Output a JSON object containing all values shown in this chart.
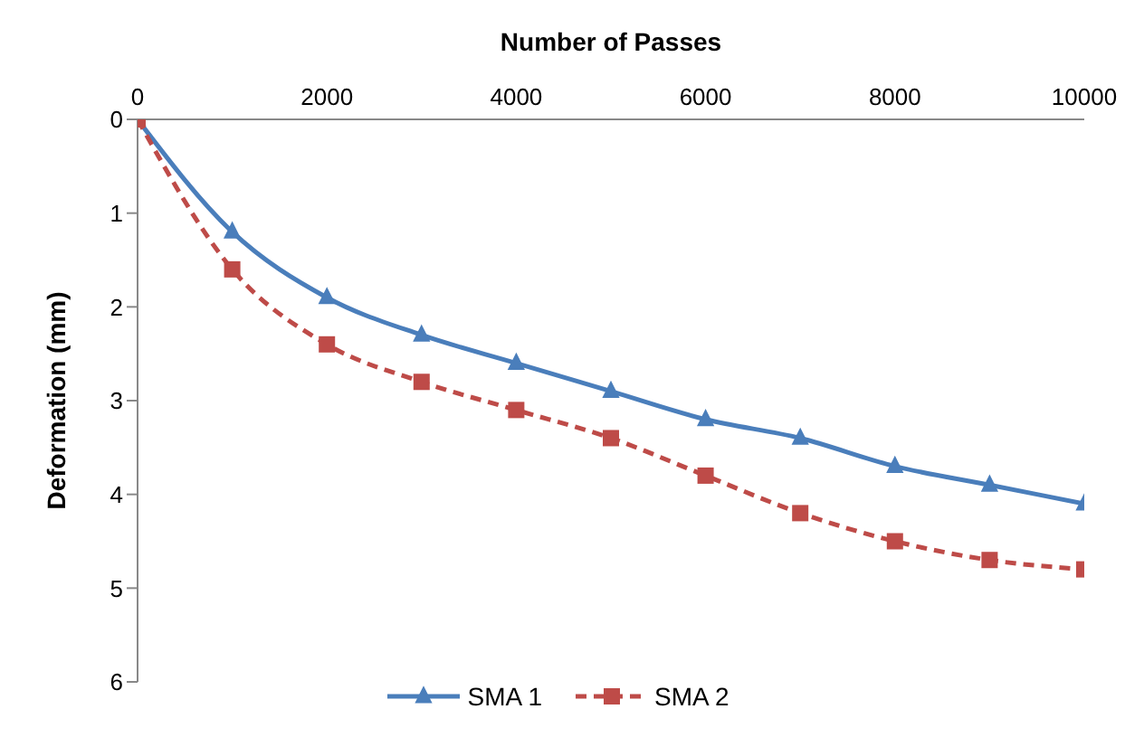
{
  "chart_data": {
    "type": "line",
    "xlabel": "Number of Passes",
    "ylabel": "Deformation (mm)",
    "x": [
      0,
      1000,
      2000,
      3000,
      4000,
      5000,
      6000,
      7000,
      8000,
      9000,
      10000
    ],
    "series": [
      {
        "name": "SMA 1",
        "color": "#4a7ebb",
        "marker": "triangle",
        "line_style": "solid",
        "values": [
          0,
          1.2,
          1.9,
          2.3,
          2.6,
          2.9,
          3.2,
          3.4,
          3.7,
          3.9,
          4.1
        ]
      },
      {
        "name": "SMA 2",
        "color": "#be4b48",
        "marker": "square",
        "line_style": "dashed",
        "values": [
          0,
          1.6,
          2.4,
          2.8,
          3.1,
          3.4,
          3.8,
          4.2,
          4.5,
          4.7,
          4.8
        ]
      }
    ],
    "xlim": [
      0,
      10000
    ],
    "xticks": [
      0,
      2000,
      4000,
      6000,
      8000,
      10000
    ],
    "ylim": [
      6,
      0
    ],
    "yticks": [
      0,
      1,
      2,
      3,
      4,
      5,
      6
    ],
    "grid": false,
    "legend": "bottom"
  }
}
